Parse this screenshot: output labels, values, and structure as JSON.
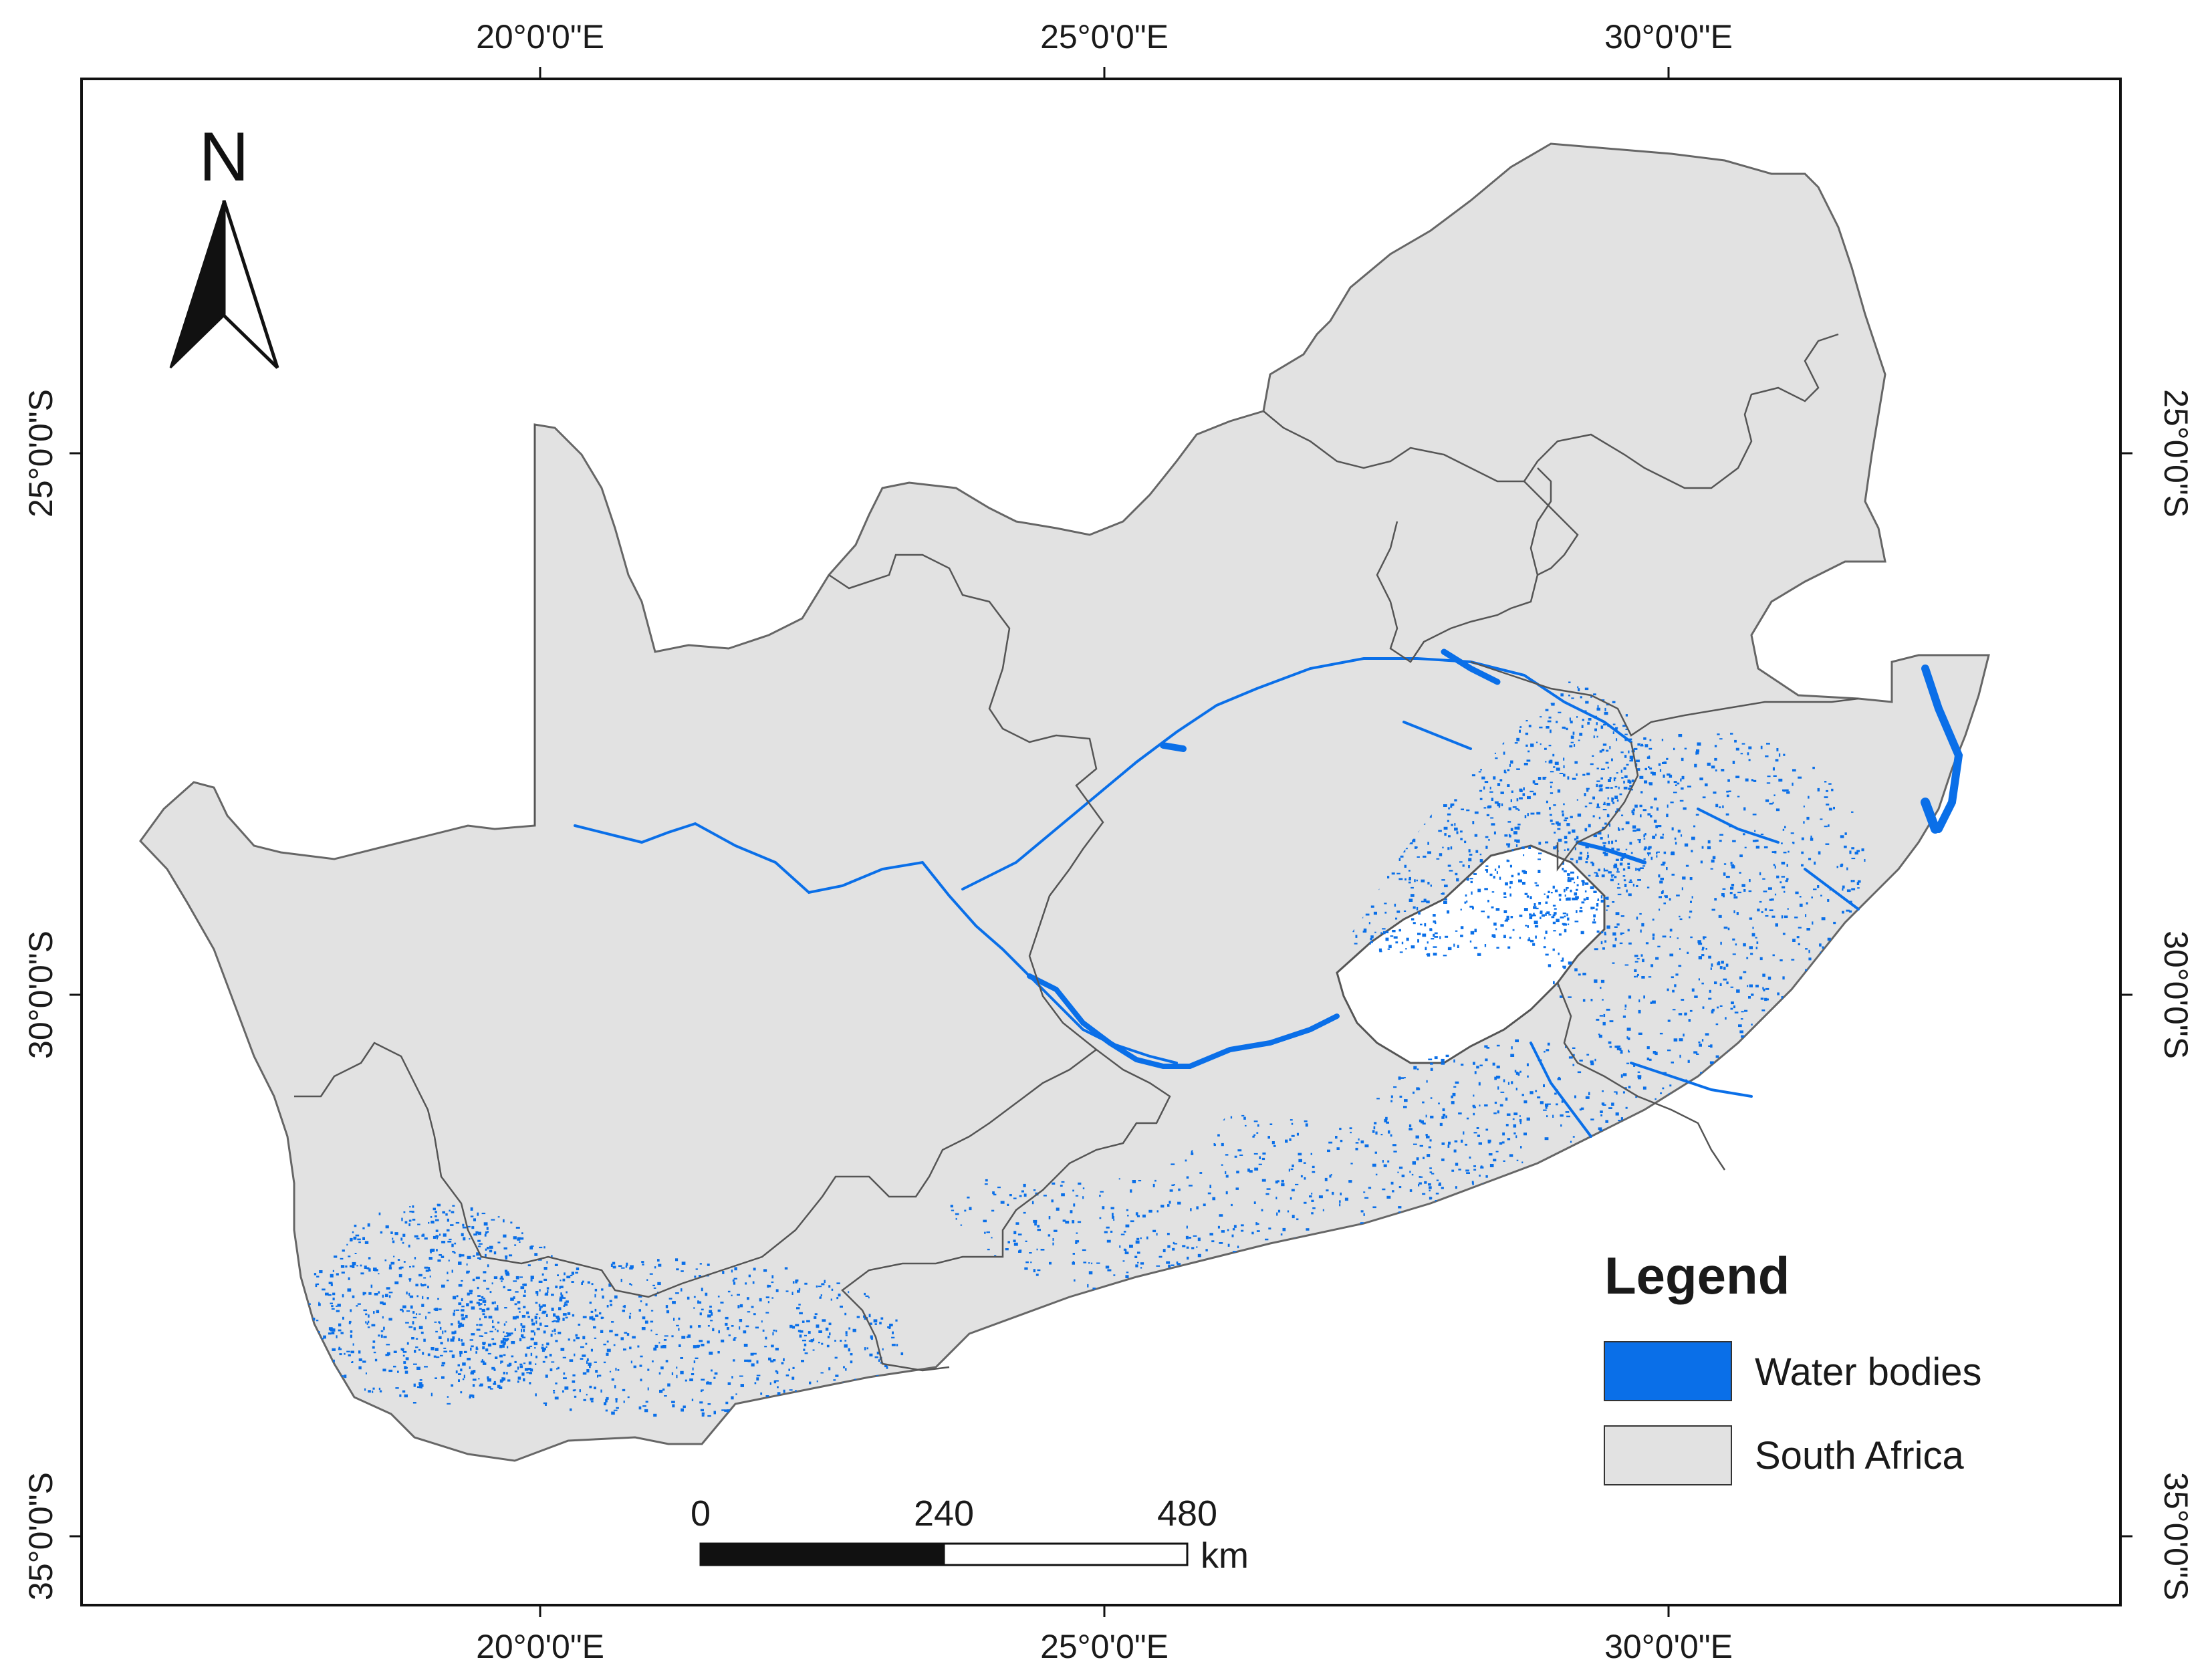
{
  "map": {
    "graticule": {
      "longitudes": [
        {
          "value": 20,
          "label": "20°0'0\"E"
        },
        {
          "value": 25,
          "label": "25°0'0\"E"
        },
        {
          "value": 30,
          "label": "30°0'0\"E"
        }
      ],
      "latitudes": [
        {
          "value": -25,
          "label": "25°0'0\"S"
        },
        {
          "value": -30,
          "label": "30°0'0\"S"
        },
        {
          "value": -35,
          "label": "35°0'0\"S"
        }
      ]
    },
    "north_arrow": {
      "label": "N"
    },
    "scale_bar": {
      "ticks": [
        "0",
        "240",
        "480"
      ],
      "unit": "km"
    },
    "legend": {
      "title": "Legend",
      "items": [
        {
          "label": "Water bodies",
          "color": "#0a6fe8"
        },
        {
          "label": "South Africa",
          "color": "#e2e2e2"
        }
      ]
    },
    "colors": {
      "land": "#e2e2e2",
      "water": "#0a6fe8",
      "border": "#555555",
      "frame": "#111111"
    }
  }
}
